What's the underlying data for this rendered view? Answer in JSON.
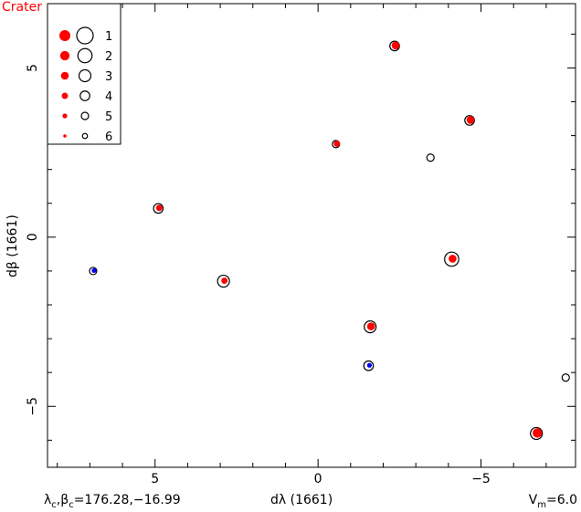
{
  "title": "Crater",
  "footer": {
    "left_lambda": "λ",
    "left_sub_c": "c",
    "left_beta": "β",
    "left_values": "=176.28,−16.99",
    "center": "dλ (1661)",
    "right_v": "V",
    "right_sub_m": "m",
    "right_value": "=6.0"
  },
  "chart_data": {
    "type": "scatter",
    "title": "Crater",
    "xlabel": "dλ (1661)",
    "ylabel": "dβ (1661)",
    "xlim": [
      8.3,
      -7.9
    ],
    "ylim": [
      -6.8,
      6.9
    ],
    "x_reversed": true,
    "xticks": [
      5,
      0,
      -5
    ],
    "xtick_labels": [
      "5",
      "0",
      "−5"
    ],
    "yticks": [
      5,
      0,
      -5
    ],
    "ytick_labels": [
      "5",
      "0",
      "−5"
    ],
    "legend": {
      "placement": "top-left",
      "entries": [
        {
          "label": "1",
          "magnitude": 1
        },
        {
          "label": "2",
          "magnitude": 2
        },
        {
          "label": "3",
          "magnitude": 3
        },
        {
          "label": "4",
          "magnitude": 4
        },
        {
          "label": "5",
          "magnitude": 5
        },
        {
          "label": "6",
          "magnitude": 6
        }
      ]
    },
    "colors": {
      "red": "#ff0000",
      "blue": "#0000ff",
      "outline": "#000000"
    },
    "points": [
      {
        "x": 6.9,
        "y": -1.0,
        "ring": 5,
        "fill": "blue",
        "dot": 5
      },
      {
        "x": 4.9,
        "y": 0.85,
        "ring": 4,
        "fill": "red",
        "dot": 4
      },
      {
        "x": 2.9,
        "y": -1.3,
        "ring": 3,
        "fill": "red",
        "dot": 4
      },
      {
        "x": -0.55,
        "y": 2.75,
        "ring": 5,
        "fill": "red",
        "dot": 4
      },
      {
        "x": -1.6,
        "y": -2.65,
        "ring": 3,
        "fill": "red",
        "dot": 3
      },
      {
        "x": -1.55,
        "y": -3.8,
        "ring": 4,
        "fill": "blue",
        "dot": 5
      },
      {
        "x": -2.35,
        "y": 5.65,
        "ring": 4,
        "fill": "red",
        "dot": 3
      },
      {
        "x": -3.45,
        "y": 2.35,
        "ring": 5,
        "fill": null,
        "dot": null
      },
      {
        "x": -4.1,
        "y": -0.65,
        "ring": 2,
        "fill": "red",
        "dot": 3
      },
      {
        "x": -4.65,
        "y": 3.45,
        "ring": 4,
        "fill": "red",
        "dot": 3
      },
      {
        "x": -6.7,
        "y": -5.8,
        "ring": 3,
        "fill": "red",
        "dot": 2
      },
      {
        "x": -7.6,
        "y": -4.15,
        "ring": 5,
        "fill": null,
        "dot": null
      }
    ]
  }
}
